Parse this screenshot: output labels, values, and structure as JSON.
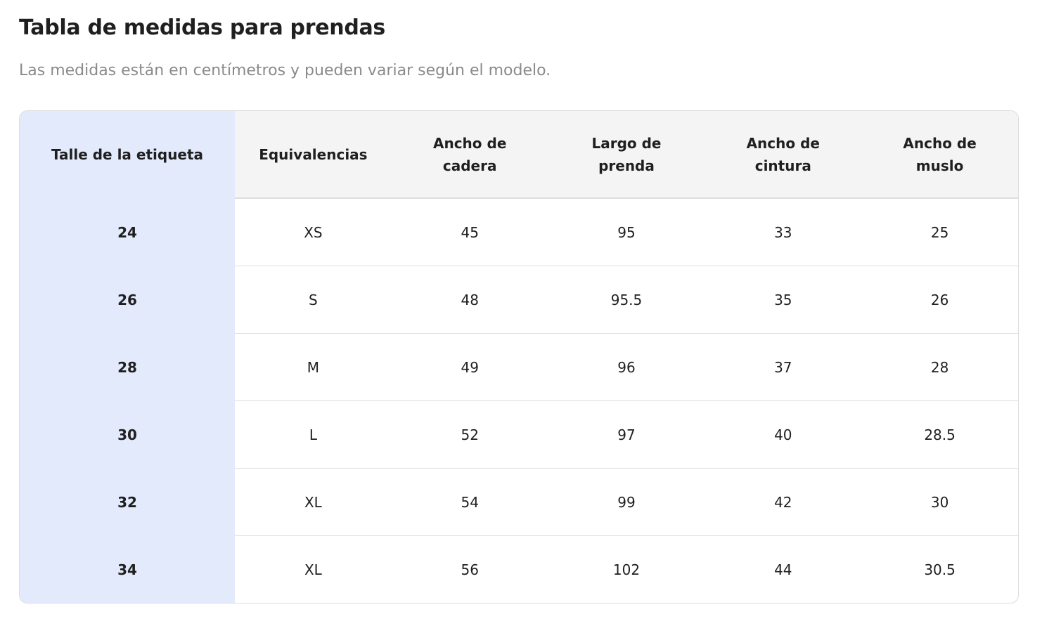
{
  "header": {
    "title": "Tabla de medidas para prendas",
    "subtitle": "Las medidas están en centímetros y pueden variar según el modelo."
  },
  "table": {
    "columns": [
      "Talle de la etiqueta",
      "Equivalencias",
      "Ancho de cadera",
      "Largo de prenda",
      "Ancho de cintura",
      "Ancho de muslo"
    ],
    "rows": [
      [
        24,
        "XS",
        45,
        95,
        33,
        25
      ],
      [
        26,
        "S",
        48,
        95.5,
        35,
        26
      ],
      [
        28,
        "M",
        49,
        96,
        37,
        28
      ],
      [
        30,
        "L",
        52,
        97,
        40,
        28.5
      ],
      [
        32,
        "XL",
        54,
        99,
        42,
        30
      ],
      [
        34,
        "XL",
        56,
        102,
        44,
        30.5
      ]
    ]
  }
}
